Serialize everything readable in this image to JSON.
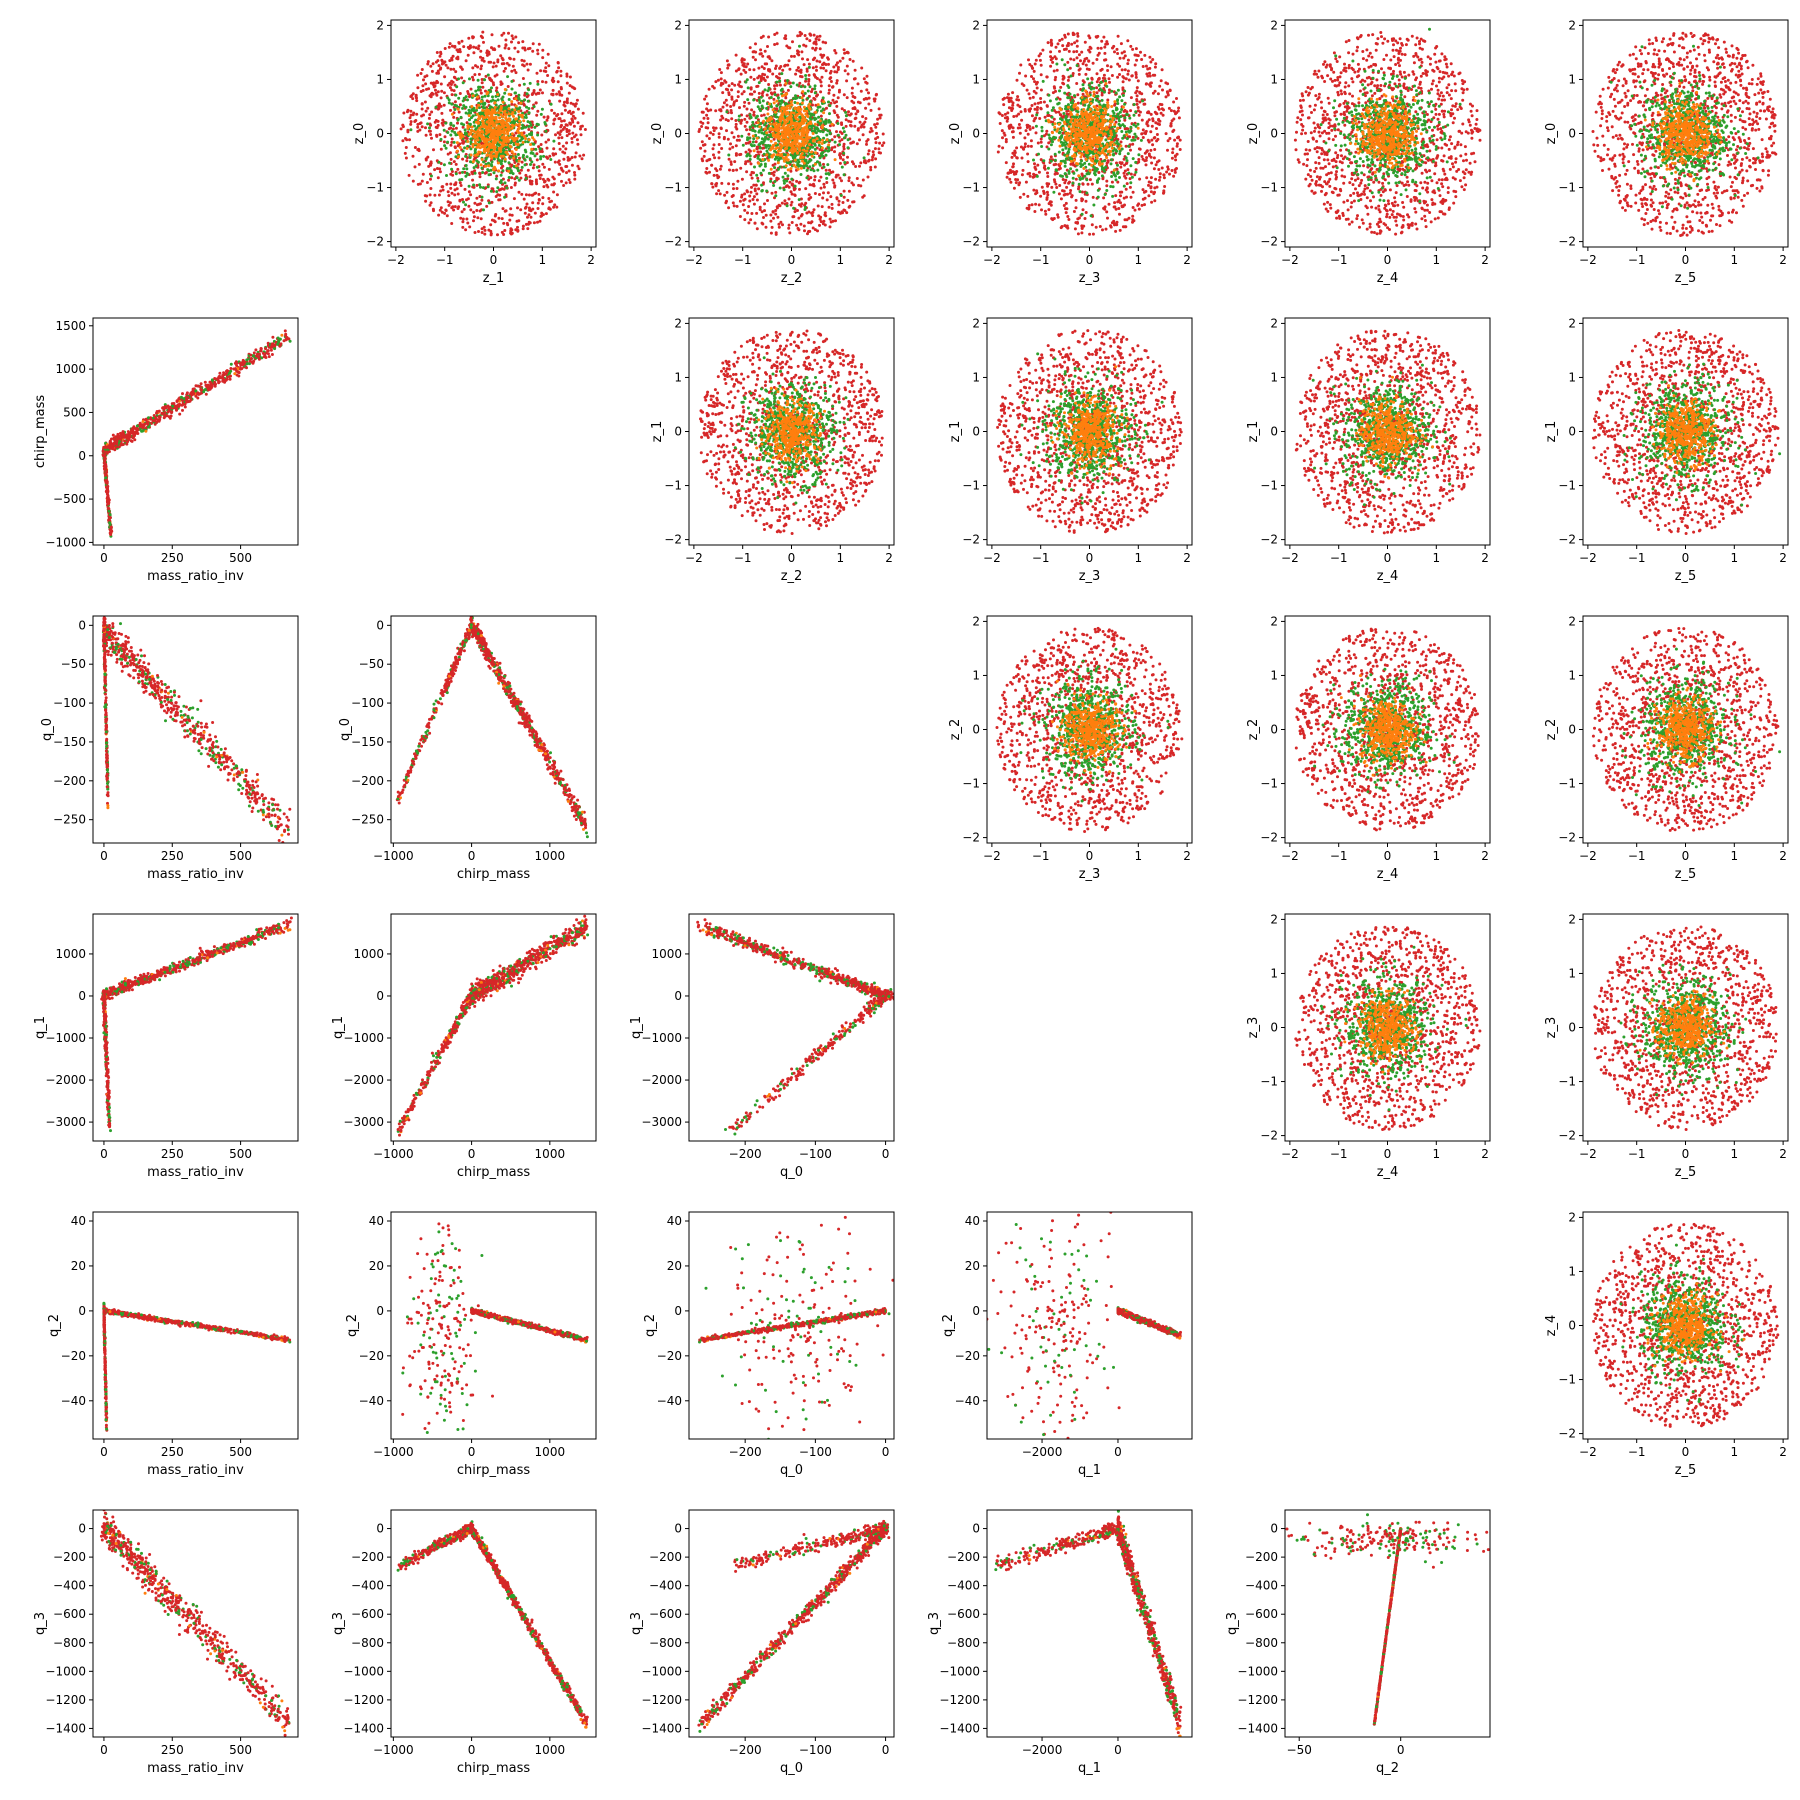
{
  "chart_data": {
    "type": "scatter",
    "layout": "pair-plot grid 6x6: upper triangle z-latent pairs, lower triangle q-parameter pairs, diagonal empty",
    "colors": {
      "red": "#d62728",
      "green": "#2ca02c",
      "orange": "#ff7f0e"
    },
    "series": [
      {
        "name": "",
        "color": "red"
      },
      {
        "name": "",
        "color": "green"
      },
      {
        "name": "",
        "color": "orange"
      }
    ],
    "axes": {
      "z_0": {
        "label": "z_0",
        "range": [
          -2.1,
          2.1
        ],
        "ticks": [
          {
            "v": -2,
            "t": "−2"
          },
          {
            "v": -1,
            "t": "−1"
          },
          {
            "v": 0,
            "t": "0"
          },
          {
            "v": 1,
            "t": "1"
          },
          {
            "v": 2,
            "t": "2"
          }
        ]
      },
      "z_1": {
        "label": "z_1",
        "range": [
          -2.1,
          2.1
        ],
        "ticks": [
          {
            "v": -2,
            "t": "−2"
          },
          {
            "v": -1,
            "t": "−1"
          },
          {
            "v": 0,
            "t": "0"
          },
          {
            "v": 1,
            "t": "1"
          },
          {
            "v": 2,
            "t": "2"
          }
        ]
      },
      "z_2": {
        "label": "z_2",
        "range": [
          -2.1,
          2.1
        ],
        "ticks": [
          {
            "v": -2,
            "t": "−2"
          },
          {
            "v": -1,
            "t": "−1"
          },
          {
            "v": 0,
            "t": "0"
          },
          {
            "v": 1,
            "t": "1"
          },
          {
            "v": 2,
            "t": "2"
          }
        ]
      },
      "z_3": {
        "label": "z_3",
        "range": [
          -2.1,
          2.1
        ],
        "ticks": [
          {
            "v": -2,
            "t": "−2"
          },
          {
            "v": -1,
            "t": "−1"
          },
          {
            "v": 0,
            "t": "0"
          },
          {
            "v": 1,
            "t": "1"
          },
          {
            "v": 2,
            "t": "2"
          }
        ]
      },
      "z_4": {
        "label": "z_4",
        "range": [
          -2.1,
          2.1
        ],
        "ticks": [
          {
            "v": -2,
            "t": "−2"
          },
          {
            "v": -1,
            "t": "−1"
          },
          {
            "v": 0,
            "t": "0"
          },
          {
            "v": 1,
            "t": "1"
          },
          {
            "v": 2,
            "t": "2"
          }
        ]
      },
      "z_5": {
        "label": "z_5",
        "range": [
          -2.1,
          2.1
        ],
        "ticks": [
          {
            "v": -2,
            "t": "−2"
          },
          {
            "v": -1,
            "t": "−1"
          },
          {
            "v": 0,
            "t": "0"
          },
          {
            "v": 1,
            "t": "1"
          },
          {
            "v": 2,
            "t": "2"
          }
        ]
      },
      "mass_ratio_inv": {
        "label": "mass_ratio_inv",
        "range": [
          -40,
          710
        ],
        "ticks": [
          {
            "v": 0,
            "t": "0"
          },
          {
            "v": 250,
            "t": "250"
          },
          {
            "v": 500,
            "t": "500"
          }
        ]
      },
      "chirp_mass": {
        "label": "chirp_mass",
        "range": [
          -1030,
          1590
        ],
        "ticks": [
          {
            "v": -1000,
            "t": "−1000"
          },
          {
            "v": -500,
            "t": "−500"
          },
          {
            "v": 0,
            "t": "0"
          },
          {
            "v": 500,
            "t": "500"
          },
          {
            "v": 1000,
            "t": "1000"
          },
          {
            "v": 1500,
            "t": "1500"
          }
        ]
      },
      "chirp_mass_x": {
        "label": "chirp_mass",
        "range": [
          -1030,
          1590
        ],
        "ticks": [
          {
            "v": -1000,
            "t": "−1000"
          },
          {
            "v": 0,
            "t": "0"
          },
          {
            "v": 1000,
            "t": "1000"
          }
        ]
      },
      "q_0": {
        "label": "q_0",
        "range": [
          -280,
          12
        ],
        "ticks": [
          {
            "v": -250,
            "t": "−250"
          },
          {
            "v": -200,
            "t": "−200"
          },
          {
            "v": -150,
            "t": "−150"
          },
          {
            "v": -100,
            "t": "−100"
          },
          {
            "v": -50,
            "t": "−50"
          },
          {
            "v": 0,
            "t": "0"
          }
        ]
      },
      "q_0_x": {
        "label": "q_0",
        "range": [
          -280,
          12
        ],
        "ticks": [
          {
            "v": -200,
            "t": "−200"
          },
          {
            "v": -100,
            "t": "−100"
          },
          {
            "v": 0,
            "t": "0"
          }
        ]
      },
      "q_1": {
        "label": "q_1",
        "range": [
          -3450,
          1950
        ],
        "ticks": [
          {
            "v": -3000,
            "t": "−3000"
          },
          {
            "v": -2000,
            "t": "−2000"
          },
          {
            "v": -1000,
            "t": "−1000"
          },
          {
            "v": 0,
            "t": "0"
          },
          {
            "v": 1000,
            "t": "1000"
          }
        ]
      },
      "q_1_x": {
        "label": "q_1",
        "range": [
          -3450,
          1950
        ],
        "ticks": [
          {
            "v": -2000,
            "t": "−2000"
          },
          {
            "v": 0,
            "t": "0"
          }
        ]
      },
      "q_2": {
        "label": "q_2",
        "range": [
          -57,
          44
        ],
        "ticks": [
          {
            "v": -40,
            "t": "−40"
          },
          {
            "v": -20,
            "t": "−20"
          },
          {
            "v": 0,
            "t": "0"
          },
          {
            "v": 20,
            "t": "20"
          },
          {
            "v": 40,
            "t": "40"
          }
        ]
      },
      "q_2_x": {
        "label": "q_2",
        "range": [
          -57,
          44
        ],
        "ticks": [
          {
            "v": -50,
            "t": "−50"
          },
          {
            "v": 0,
            "t": "0"
          }
        ]
      },
      "q_3": {
        "label": "q_3",
        "range": [
          -1460,
          130
        ],
        "ticks": [
          {
            "v": -1400,
            "t": "−1400"
          },
          {
            "v": -1200,
            "t": "−1200"
          },
          {
            "v": -1000,
            "t": "−1000"
          },
          {
            "v": -800,
            "t": "−800"
          },
          {
            "v": -600,
            "t": "−600"
          },
          {
            "v": -400,
            "t": "−400"
          },
          {
            "v": -200,
            "t": "−200"
          },
          {
            "v": 0,
            "t": "0"
          }
        ]
      }
    },
    "panels": [
      {
        "row": 0,
        "col": 1,
        "x": "z_1",
        "y": "z_0",
        "kind": "blob"
      },
      {
        "row": 0,
        "col": 2,
        "x": "z_2",
        "y": "z_0",
        "kind": "blob"
      },
      {
        "row": 0,
        "col": 3,
        "x": "z_3",
        "y": "z_0",
        "kind": "blob"
      },
      {
        "row": 0,
        "col": 4,
        "x": "z_4",
        "y": "z_0",
        "kind": "blob"
      },
      {
        "row": 0,
        "col": 5,
        "x": "z_5",
        "y": "z_0",
        "kind": "blob"
      },
      {
        "row": 1,
        "col": 2,
        "x": "z_2",
        "y": "z_1",
        "kind": "blob"
      },
      {
        "row": 1,
        "col": 3,
        "x": "z_3",
        "y": "z_1",
        "kind": "blob"
      },
      {
        "row": 1,
        "col": 4,
        "x": "z_4",
        "y": "z_1",
        "kind": "blob"
      },
      {
        "row": 1,
        "col": 5,
        "x": "z_5",
        "y": "z_1",
        "kind": "blob"
      },
      {
        "row": 2,
        "col": 3,
        "x": "z_3",
        "y": "z_2",
        "kind": "blob"
      },
      {
        "row": 2,
        "col": 4,
        "x": "z_4",
        "y": "z_2",
        "kind": "blob"
      },
      {
        "row": 2,
        "col": 5,
        "x": "z_5",
        "y": "z_2",
        "kind": "blob"
      },
      {
        "row": 3,
        "col": 4,
        "x": "z_4",
        "y": "z_3",
        "kind": "blob"
      },
      {
        "row": 3,
        "col": 5,
        "x": "z_5",
        "y": "z_3",
        "kind": "blob"
      },
      {
        "row": 4,
        "col": 5,
        "x": "z_5",
        "y": "z_4",
        "kind": "blob"
      },
      {
        "row": 1,
        "col": 0,
        "x": "mass_ratio_inv",
        "y": "chirp_mass",
        "kind": "trend",
        "main": {
          "from": [
            0,
            60
          ],
          "to": [
            680,
            1380
          ],
          "spread": 40
        },
        "spike": {
          "from": [
            0,
            60
          ],
          "to": [
            25,
            -900
          ],
          "spread": 18
        }
      },
      {
        "row": 2,
        "col": 0,
        "x": "mass_ratio_inv",
        "y": "q_0",
        "kind": "trend",
        "main": {
          "from": [
            0,
            -8
          ],
          "to": [
            680,
            -265
          ],
          "spread": 12
        },
        "spike": {
          "from": [
            0,
            -8
          ],
          "to": [
            15,
            -225
          ],
          "spread": 10
        }
      },
      {
        "row": 2,
        "col": 1,
        "x": "chirp_mass_x",
        "y": "q_0",
        "kind": "trend",
        "main": {
          "from": [
            0,
            0
          ],
          "to": [
            1480,
            -262
          ],
          "spread": 6
        },
        "spike": {
          "from": [
            0,
            0
          ],
          "to": [
            -950,
            -225
          ],
          "spread": 5
        }
      },
      {
        "row": 3,
        "col": 0,
        "x": "mass_ratio_inv",
        "y": "q_1",
        "kind": "trend",
        "main": {
          "from": [
            0,
            20
          ],
          "to": [
            680,
            1720
          ],
          "spread": 60
        },
        "spike": {
          "from": [
            0,
            20
          ],
          "to": [
            20,
            -3200
          ],
          "spread": 25
        }
      },
      {
        "row": 3,
        "col": 1,
        "x": "chirp_mass_x",
        "y": "q_1",
        "kind": "trend",
        "main": {
          "from": [
            0,
            0
          ],
          "to": [
            1480,
            1650
          ],
          "spread": 120
        },
        "spike": {
          "from": [
            0,
            0
          ],
          "to": [
            -950,
            -3250
          ],
          "spread": 90
        }
      },
      {
        "row": 3,
        "col": 2,
        "x": "q_0_x",
        "y": "q_1",
        "kind": "trend",
        "main": {
          "from": [
            0,
            0
          ],
          "to": [
            -265,
            1680
          ],
          "spread": 60
        },
        "spike": {
          "from": [
            0,
            0
          ],
          "to": [
            -225,
            -3250
          ],
          "spread": 50
        }
      },
      {
        "row": 4,
        "col": 0,
        "x": "mass_ratio_inv",
        "y": "q_2",
        "kind": "trend",
        "main": {
          "from": [
            0,
            0
          ],
          "to": [
            680,
            -13
          ],
          "spread": 0.5
        },
        "spike": {
          "from": [
            0,
            0
          ],
          "to": [
            10,
            -52
          ],
          "spread": 4
        }
      },
      {
        "row": 4,
        "col": 1,
        "x": "chirp_mass_x",
        "y": "q_2",
        "kind": "trend",
        "main": {
          "from": [
            0,
            0
          ],
          "to": [
            1480,
            -13
          ],
          "spread": 0.5
        },
        "cloud": {
          "x": [
            -900,
            100
          ],
          "y": [
            -53,
            40
          ]
        }
      },
      {
        "row": 4,
        "col": 2,
        "x": "q_0_x",
        "y": "q_2",
        "kind": "trend",
        "main": {
          "from": [
            0,
            0
          ],
          "to": [
            -265,
            -13
          ],
          "spread": 0.5
        },
        "cloud": {
          "x": [
            -250,
            0
          ],
          "y": [
            -53,
            40
          ]
        }
      },
      {
        "row": 4,
        "col": 3,
        "x": "q_1_x",
        "y": "q_2",
        "kind": "trend",
        "main": {
          "from": [
            0,
            0
          ],
          "to": [
            1650,
            -11
          ],
          "spread": 0.6
        },
        "cloud": {
          "x": [
            -3250,
            0
          ],
          "y": [
            -53,
            40
          ]
        }
      },
      {
        "row": 5,
        "col": 0,
        "x": "mass_ratio_inv",
        "y": "q_3",
        "kind": "trend",
        "main": {
          "from": [
            0,
            0
          ],
          "to": [
            680,
            -1370
          ],
          "spread": 60
        }
      },
      {
        "row": 5,
        "col": 1,
        "x": "chirp_mass_x",
        "y": "q_3",
        "kind": "trend",
        "main": {
          "from": [
            0,
            0
          ],
          "to": [
            1480,
            -1370
          ],
          "spread": 20
        },
        "spike": {
          "from": [
            0,
            0
          ],
          "to": [
            -950,
            -270
          ],
          "spread": 20
        }
      },
      {
        "row": 5,
        "col": 2,
        "x": "q_0_x",
        "y": "q_3",
        "kind": "trend",
        "main": {
          "from": [
            0,
            0
          ],
          "to": [
            -265,
            -1380
          ],
          "spread": 25
        },
        "spike": {
          "from": [
            0,
            0
          ],
          "to": [
            -220,
            -260
          ],
          "spread": 25
        }
      },
      {
        "row": 5,
        "col": 3,
        "x": "q_1_x",
        "y": "q_3",
        "kind": "trend",
        "main": {
          "from": [
            0,
            0
          ],
          "to": [
            1650,
            -1370
          ],
          "spread": 50
        },
        "spike": {
          "from": [
            0,
            0
          ],
          "to": [
            -3250,
            -260
          ],
          "spread": 25
        }
      },
      {
        "row": 5,
        "col": 4,
        "x": "q_2_x",
        "y": "q_3",
        "kind": "trend",
        "main": {
          "from": [
            0,
            0
          ],
          "to": [
            -13,
            -1370
          ],
          "spread": 0.6
        },
        "cloud": {
          "x": [
            -53,
            40
          ],
          "y": [
            -200,
            60
          ]
        }
      }
    ]
  }
}
